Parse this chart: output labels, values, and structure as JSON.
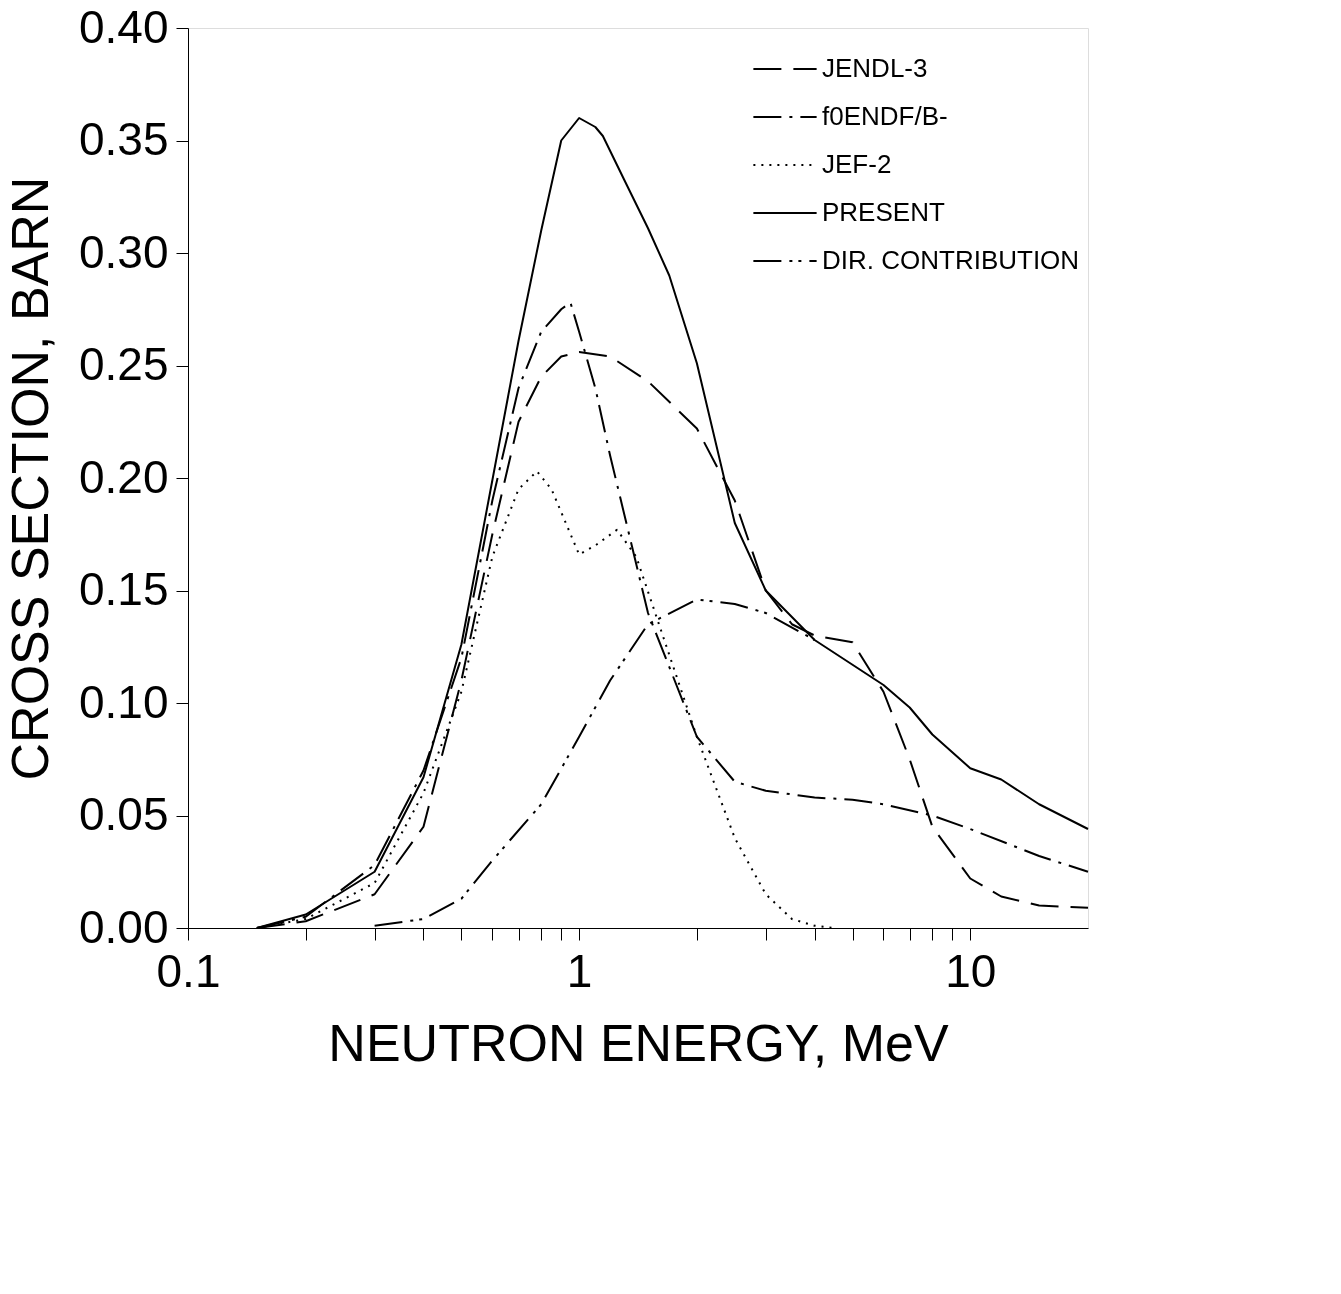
{
  "chart_data": {
    "type": "line",
    "xlabel": "NEUTRON  ENERGY,  MeV",
    "ylabel": "CROSS  SECTION,  BARN",
    "log": "x",
    "grid": false,
    "legend": "top right",
    "marker": "none",
    "xlim": [
      0.1,
      20
    ],
    "ylim": [
      0,
      0.4
    ],
    "xticks": [
      0.1,
      {
        "value": 0.2,
        "label": null
      },
      {
        "value": 0.3,
        "label": null
      },
      {
        "value": 0.4,
        "label": null
      },
      {
        "value": 0.5,
        "label": null
      },
      {
        "value": 0.6,
        "label": null
      },
      {
        "value": 0.7,
        "label": null
      },
      {
        "value": 0.8,
        "label": null
      },
      {
        "value": 0.9,
        "label": null
      },
      1,
      {
        "value": 2,
        "label": null
      },
      {
        "value": 3,
        "label": null
      },
      {
        "value": 4,
        "label": null
      },
      {
        "value": 5,
        "label": null
      },
      {
        "value": 6,
        "label": null
      },
      {
        "value": 7,
        "label": null
      },
      {
        "value": 8,
        "label": null
      },
      {
        "value": 9,
        "label": null
      },
      10
    ],
    "yticks": [
      {
        "value": 0,
        "label": "0.00"
      },
      {
        "value": 0.05,
        "label": "0.05"
      },
      {
        "value": 0.1,
        "label": "0.10"
      },
      {
        "value": 0.15,
        "label": "0.15"
      },
      {
        "value": 0.2,
        "label": "0.20"
      },
      {
        "value": 0.25,
        "label": "0.25"
      },
      {
        "value": 0.3,
        "label": "0.30"
      },
      {
        "value": 0.35,
        "label": "0.35"
      },
      {
        "value": 0.4,
        "label": "0.40"
      }
    ],
    "series": [
      {
        "name": "JENDL-3",
        "color": "#000000",
        "line_style": "longdash",
        "x": [
          0.15,
          0.2,
          0.3,
          0.4,
          0.5,
          0.6,
          0.7,
          0.8,
          0.9,
          1.0,
          1.2,
          1.5,
          2,
          2.5,
          3,
          3.5,
          4,
          5,
          6,
          7,
          8,
          10,
          12,
          15,
          20
        ],
        "values": [
          0,
          0.003,
          0.015,
          0.045,
          0.11,
          0.175,
          0.225,
          0.245,
          0.254,
          0.256,
          0.254,
          0.243,
          0.222,
          0.19,
          0.15,
          0.135,
          0.13,
          0.127,
          0.105,
          0.075,
          0.045,
          0.022,
          0.014,
          0.01,
          0.009
        ]
      },
      {
        "name": "f0ENDF/B-",
        "color": "#000000",
        "line_style": "dashdot",
        "x": [
          0.15,
          0.2,
          0.3,
          0.4,
          0.5,
          0.6,
          0.7,
          0.8,
          0.9,
          0.95,
          1.0,
          1.1,
          1.2,
          1.5,
          2,
          2.5,
          3,
          4,
          5,
          6,
          8,
          10,
          15,
          20
        ],
        "values": [
          0,
          0.005,
          0.028,
          0.07,
          0.12,
          0.19,
          0.24,
          0.265,
          0.275,
          0.278,
          0.265,
          0.24,
          0.21,
          0.14,
          0.085,
          0.065,
          0.061,
          0.058,
          0.057,
          0.055,
          0.05,
          0.044,
          0.032,
          0.025
        ]
      },
      {
        "name": "JEF-2",
        "color": "#000000",
        "line_style": "dotted",
        "x": [
          0.15,
          0.2,
          0.3,
          0.4,
          0.5,
          0.6,
          0.7,
          0.78,
          0.85,
          1.0,
          1.1,
          1.25,
          1.4,
          1.6,
          2,
          2.5,
          3,
          3.5,
          4,
          4.5
        ],
        "values": [
          0,
          0.004,
          0.02,
          0.06,
          0.105,
          0.165,
          0.195,
          0.203,
          0.195,
          0.166,
          0.17,
          0.177,
          0.165,
          0.135,
          0.085,
          0.04,
          0.015,
          0.004,
          0.001,
          0
        ]
      },
      {
        "name": "PRESENT",
        "color": "#000000",
        "line_style": "solid",
        "x": [
          0.15,
          0.2,
          0.3,
          0.4,
          0.5,
          0.6,
          0.7,
          0.8,
          0.9,
          1.0,
          1.1,
          1.15,
          1.3,
          1.5,
          1.7,
          2,
          2.5,
          3,
          4,
          5,
          6,
          7,
          8,
          10,
          12,
          15,
          20
        ],
        "values": [
          0,
          0.006,
          0.025,
          0.067,
          0.126,
          0.199,
          0.261,
          0.31,
          0.35,
          0.36,
          0.356,
          0.352,
          0.333,
          0.311,
          0.29,
          0.251,
          0.18,
          0.15,
          0.128,
          0.117,
          0.108,
          0.098,
          0.086,
          0.071,
          0.066,
          0.055,
          0.044
        ]
      },
      {
        "name": "DIR. CONTRIBUTION",
        "color": "#000000",
        "line_style": "dashdotdot",
        "x": [
          0.3,
          0.4,
          0.5,
          0.6,
          0.8,
          1.0,
          1.2,
          1.5,
          2,
          2.5,
          3,
          4
        ],
        "values": [
          0.001,
          0.004,
          0.013,
          0.03,
          0.055,
          0.085,
          0.11,
          0.135,
          0.146,
          0.144,
          0.14,
          0.128
        ]
      }
    ]
  }
}
